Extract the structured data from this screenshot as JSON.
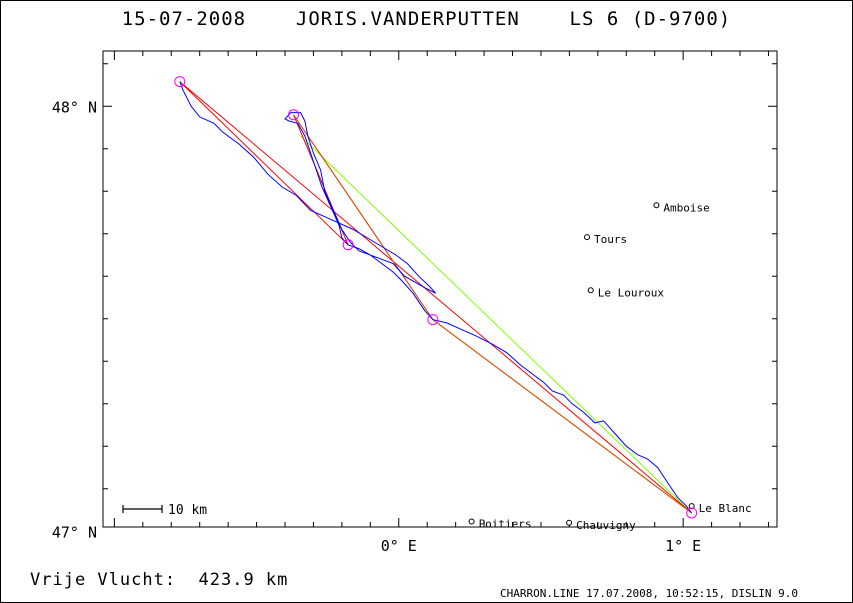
{
  "title": "15-07-2008    JORIS.VANDERPUTTEN    LS 6 (D-9700)",
  "footer": {
    "distance": "Vrije Vlucht:  423.9 km",
    "stamp": "CHARRON.LINE 17.07.2008, 10:52:15, DISLIN 9.0"
  },
  "colors": {
    "track": "#0000ff",
    "course": "#ff0000",
    "leg_alt": "#cc6600",
    "closing": "#80ff00",
    "turnpoint": "#ff00ff"
  },
  "chart_data": {
    "type": "map-track",
    "xlim": [
      -1.04,
      1.33
    ],
    "ylim": [
      47.01,
      48.13
    ],
    "x_ticks": [
      {
        "v": 0,
        "label": "0° E"
      },
      {
        "v": 1,
        "label": "1° E"
      }
    ],
    "y_ticks": [
      {
        "v": 48,
        "label": "48° N"
      },
      {
        "v": 47,
        "label": "47° N"
      }
    ],
    "scale_bar": "10 km",
    "cities": [
      {
        "name": "Amboise",
        "lon": 0.906,
        "lat": 47.767
      },
      {
        "name": "Tours",
        "lon": 0.662,
        "lat": 47.692
      },
      {
        "name": "Le Louroux",
        "lon": 0.675,
        "lat": 47.567
      },
      {
        "name": "Poitiers",
        "lon": 0.256,
        "lat": 47.023
      },
      {
        "name": "Chauvigny",
        "lon": 0.599,
        "lat": 47.02
      },
      {
        "name": "Le Blanc",
        "lon": 1.03,
        "lat": 47.059
      }
    ],
    "turnpoints": [
      {
        "lon": -0.77,
        "lat": 48.058
      },
      {
        "lon": -0.37,
        "lat": 47.98
      },
      {
        "lon": -0.178,
        "lat": 47.674
      },
      {
        "lon": 0.12,
        "lat": 47.498
      },
      {
        "lon": 1.03,
        "lat": 47.043
      }
    ],
    "course": [
      [
        1.03,
        47.043
      ],
      [
        -0.77,
        48.058
      ],
      [
        -0.178,
        47.674
      ],
      [
        -0.37,
        47.98
      ],
      [
        0.12,
        47.498
      ],
      [
        1.03,
        47.043
      ]
    ],
    "closing_line": [
      [
        -0.345,
        47.93
      ],
      [
        1.03,
        47.043
      ]
    ],
    "track": [
      [
        1.03,
        47.043
      ],
      [
        1.01,
        47.06
      ],
      [
        0.98,
        47.08
      ],
      [
        0.95,
        47.11
      ],
      [
        0.91,
        47.15
      ],
      [
        0.875,
        47.17
      ],
      [
        0.84,
        47.18
      ],
      [
        0.8,
        47.2
      ],
      [
        0.76,
        47.23
      ],
      [
        0.72,
        47.26
      ],
      [
        0.69,
        47.255
      ],
      [
        0.65,
        47.28
      ],
      [
        0.61,
        47.3
      ],
      [
        0.58,
        47.32
      ],
      [
        0.54,
        47.33
      ],
      [
        0.51,
        47.35
      ],
      [
        0.47,
        47.37
      ],
      [
        0.43,
        47.39
      ],
      [
        0.38,
        47.42
      ],
      [
        0.33,
        47.44
      ],
      [
        0.27,
        47.46
      ],
      [
        0.22,
        47.475
      ],
      [
        0.17,
        47.49
      ],
      [
        0.12,
        47.498
      ],
      [
        0.09,
        47.52
      ],
      [
        0.05,
        47.56
      ],
      [
        0.01,
        47.59
      ],
      [
        -0.02,
        47.61
      ],
      [
        -0.06,
        47.63
      ],
      [
        -0.1,
        47.65
      ],
      [
        -0.14,
        47.665
      ],
      [
        -0.178,
        47.674
      ],
      [
        -0.2,
        47.69
      ],
      [
        -0.21,
        47.72
      ],
      [
        -0.23,
        47.75
      ],
      [
        -0.25,
        47.78
      ],
      [
        -0.27,
        47.81
      ],
      [
        -0.29,
        47.85
      ],
      [
        -0.31,
        47.89
      ],
      [
        -0.33,
        47.93
      ],
      [
        -0.355,
        47.96
      ],
      [
        -0.385,
        47.965
      ],
      [
        -0.4,
        47.97
      ],
      [
        -0.38,
        47.985
      ],
      [
        -0.345,
        47.985
      ],
      [
        -0.33,
        47.965
      ],
      [
        -0.32,
        47.93
      ],
      [
        -0.3,
        47.89
      ],
      [
        -0.275,
        47.85
      ],
      [
        -0.26,
        47.8
      ],
      [
        -0.24,
        47.77
      ],
      [
        -0.22,
        47.74
      ],
      [
        -0.2,
        47.71
      ],
      [
        -0.17,
        47.68
      ],
      [
        -0.14,
        47.66
      ],
      [
        -0.1,
        47.65
      ],
      [
        -0.06,
        47.64
      ],
      [
        -0.02,
        47.63
      ],
      [
        0.02,
        47.6
      ],
      [
        0.06,
        47.585
      ],
      [
        0.1,
        47.57
      ],
      [
        0.13,
        47.56
      ],
      [
        0.11,
        47.575
      ],
      [
        0.07,
        47.6
      ],
      [
        0.03,
        47.63
      ],
      [
        -0.01,
        47.65
      ],
      [
        -0.06,
        47.67
      ],
      [
        -0.11,
        47.69
      ],
      [
        -0.16,
        47.71
      ],
      [
        -0.21,
        47.725
      ],
      [
        -0.26,
        47.74
      ],
      [
        -0.31,
        47.755
      ],
      [
        -0.36,
        47.79
      ],
      [
        -0.41,
        47.81
      ],
      [
        -0.46,
        47.84
      ],
      [
        -0.51,
        47.88
      ],
      [
        -0.56,
        47.91
      ],
      [
        -0.62,
        47.94
      ],
      [
        -0.65,
        47.96
      ],
      [
        -0.7,
        47.975
      ],
      [
        -0.73,
        48.0
      ],
      [
        -0.76,
        48.04
      ],
      [
        -0.77,
        48.058
      ]
    ]
  }
}
